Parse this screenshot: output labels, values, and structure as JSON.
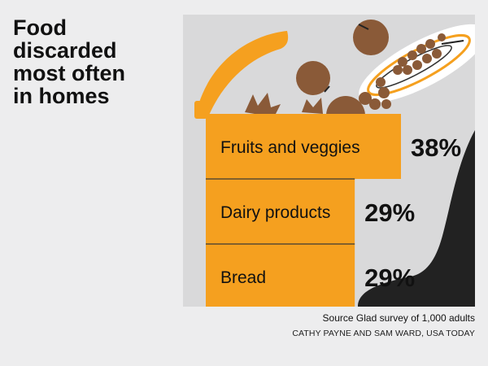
{
  "title_lines": [
    "Food",
    "discarded",
    "most often",
    "in homes"
  ],
  "source": "Source Glad survey of 1,000 adults",
  "credit": "CATHY PAYNE AND SAM WARD, USA TODAY",
  "colors": {
    "background": "#ededee",
    "panel": "#d9d9da",
    "bar": "#f5a01f",
    "divider": "#5a4a32",
    "food": "#8a5a38",
    "dark": "#222222",
    "text": "#111111"
  },
  "chart_data": {
    "type": "bar",
    "orientation": "horizontal",
    "categories": [
      "Fruits and veggies",
      "Dairy products",
      "Bread"
    ],
    "values": [
      38,
      29,
      29
    ],
    "value_labels": [
      "38%",
      "29%",
      "29%"
    ],
    "xlim": [
      0,
      38
    ],
    "title": "Food discarded most often in homes"
  }
}
